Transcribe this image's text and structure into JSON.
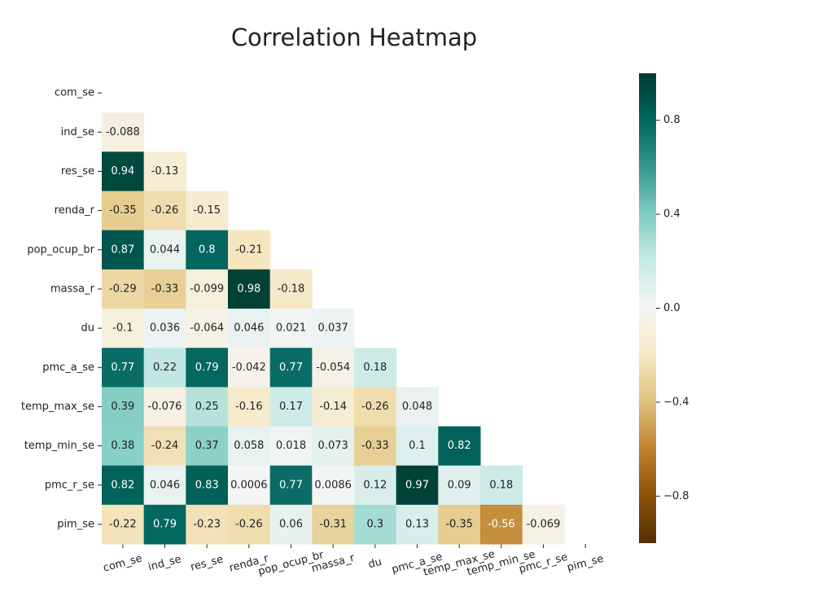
{
  "chart_data": {
    "type": "heatmap",
    "title": "Correlation Heatmap",
    "categories": [
      "com_se",
      "ind_se",
      "res_se",
      "renda_r",
      "pop_ocup_br",
      "massa_r",
      "du",
      "pmc_a_se",
      "temp_max_se",
      "temp_min_se",
      "pmc_r_se",
      "pim_se"
    ],
    "values": [
      [
        null,
        null,
        null,
        null,
        null,
        null,
        null,
        null,
        null,
        null,
        null,
        null
      ],
      [
        -0.088,
        null,
        null,
        null,
        null,
        null,
        null,
        null,
        null,
        null,
        null,
        null
      ],
      [
        0.94,
        -0.13,
        null,
        null,
        null,
        null,
        null,
        null,
        null,
        null,
        null,
        null
      ],
      [
        -0.35,
        -0.26,
        -0.15,
        null,
        null,
        null,
        null,
        null,
        null,
        null,
        null,
        null
      ],
      [
        0.87,
        0.044,
        0.8,
        -0.21,
        null,
        null,
        null,
        null,
        null,
        null,
        null,
        null
      ],
      [
        -0.29,
        -0.33,
        -0.099,
        0.98,
        -0.18,
        null,
        null,
        null,
        null,
        null,
        null,
        null
      ],
      [
        -0.1,
        0.036,
        -0.064,
        0.046,
        0.021,
        0.037,
        null,
        null,
        null,
        null,
        null,
        null
      ],
      [
        0.77,
        0.22,
        0.79,
        -0.042,
        0.77,
        -0.054,
        0.18,
        null,
        null,
        null,
        null,
        null
      ],
      [
        0.39,
        -0.076,
        0.25,
        -0.16,
        0.17,
        -0.14,
        -0.26,
        0.048,
        null,
        null,
        null,
        null
      ],
      [
        0.38,
        -0.24,
        0.37,
        0.058,
        0.018,
        0.073,
        -0.33,
        0.1,
        0.82,
        null,
        null,
        null
      ],
      [
        0.82,
        0.046,
        0.83,
        0.0006,
        0.77,
        0.0086,
        0.12,
        0.97,
        0.09,
        0.18,
        null,
        null
      ],
      [
        -0.22,
        0.79,
        -0.23,
        -0.26,
        0.06,
        -0.31,
        0.3,
        0.13,
        -0.35,
        -0.56,
        -0.069,
        null
      ]
    ],
    "colorscale": [
      "#543005",
      "#8c510a",
      "#bf812d",
      "#dfc27d",
      "#f6e8c3",
      "#f5f5f5",
      "#c7eae5",
      "#80cdc1",
      "#35978f",
      "#01665e",
      "#003c30"
    ],
    "clim": [
      -1,
      1
    ],
    "cticks": [
      {
        "value": -0.8,
        "label": "−0.8"
      },
      {
        "value": -0.4,
        "label": "−0.4"
      },
      {
        "value": 0.0,
        "label": "0.0"
      },
      0.4,
      0.8
    ]
  }
}
